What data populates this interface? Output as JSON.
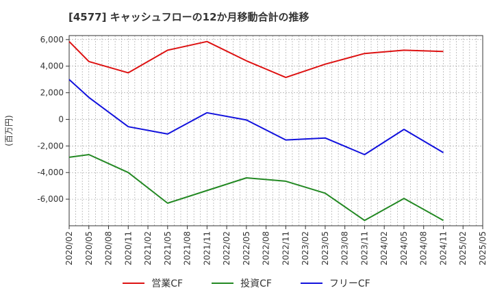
{
  "chart_data": {
    "type": "line",
    "title": "[4577]  キャッシュフローの12か月移動合計の推移",
    "ylabel": "(百万円)",
    "xlabel": "",
    "ylim": [
      -8000,
      6300
    ],
    "yticks": [
      6000,
      4000,
      2000,
      0,
      -2000,
      -4000,
      -6000
    ],
    "ytick_labels": [
      "6,000",
      "4,000",
      "2,000",
      "0",
      "-2,000",
      "-4,000",
      "-6,000"
    ],
    "x_ticks": [
      "2020/02",
      "2020/05",
      "2020/08",
      "2020/11",
      "2021/02",
      "2021/05",
      "2021/08",
      "2021/11",
      "2022/02",
      "2022/05",
      "2022/08",
      "2022/11",
      "2023/02",
      "2023/05",
      "2023/08",
      "2023/11",
      "2024/02",
      "2024/05",
      "2024/08",
      "2024/11",
      "2025/02",
      "2025/05"
    ],
    "grid": true,
    "legend_position": "bottom",
    "series": [
      {
        "name": "営業CF",
        "color": "#dd1111",
        "points": [
          [
            0,
            5850
          ],
          [
            1,
            4350
          ],
          [
            3,
            3500
          ],
          [
            5,
            5200
          ],
          [
            7,
            5850
          ],
          [
            9,
            4400
          ],
          [
            11,
            3150
          ],
          [
            13,
            4150
          ],
          [
            15,
            4950
          ],
          [
            17,
            5200
          ],
          [
            19,
            5100
          ]
        ]
      },
      {
        "name": "投資CF",
        "color": "#228822",
        "points": [
          [
            0,
            -2850
          ],
          [
            1,
            -2650
          ],
          [
            3,
            -4000
          ],
          [
            5,
            -6300
          ],
          [
            7,
            -5350
          ],
          [
            9,
            -4400
          ],
          [
            11,
            -4650
          ],
          [
            13,
            -5550
          ],
          [
            15,
            -7600
          ],
          [
            17,
            -5950
          ],
          [
            19,
            -7600
          ]
        ]
      },
      {
        "name": "フリーCF",
        "color": "#1111dd",
        "points": [
          [
            0,
            3000
          ],
          [
            1,
            1650
          ],
          [
            3,
            -550
          ],
          [
            5,
            -1100
          ],
          [
            7,
            500
          ],
          [
            9,
            -50
          ],
          [
            11,
            -1550
          ],
          [
            13,
            -1400
          ],
          [
            15,
            -2650
          ],
          [
            17,
            -750
          ],
          [
            19,
            -2500
          ]
        ]
      }
    ]
  }
}
